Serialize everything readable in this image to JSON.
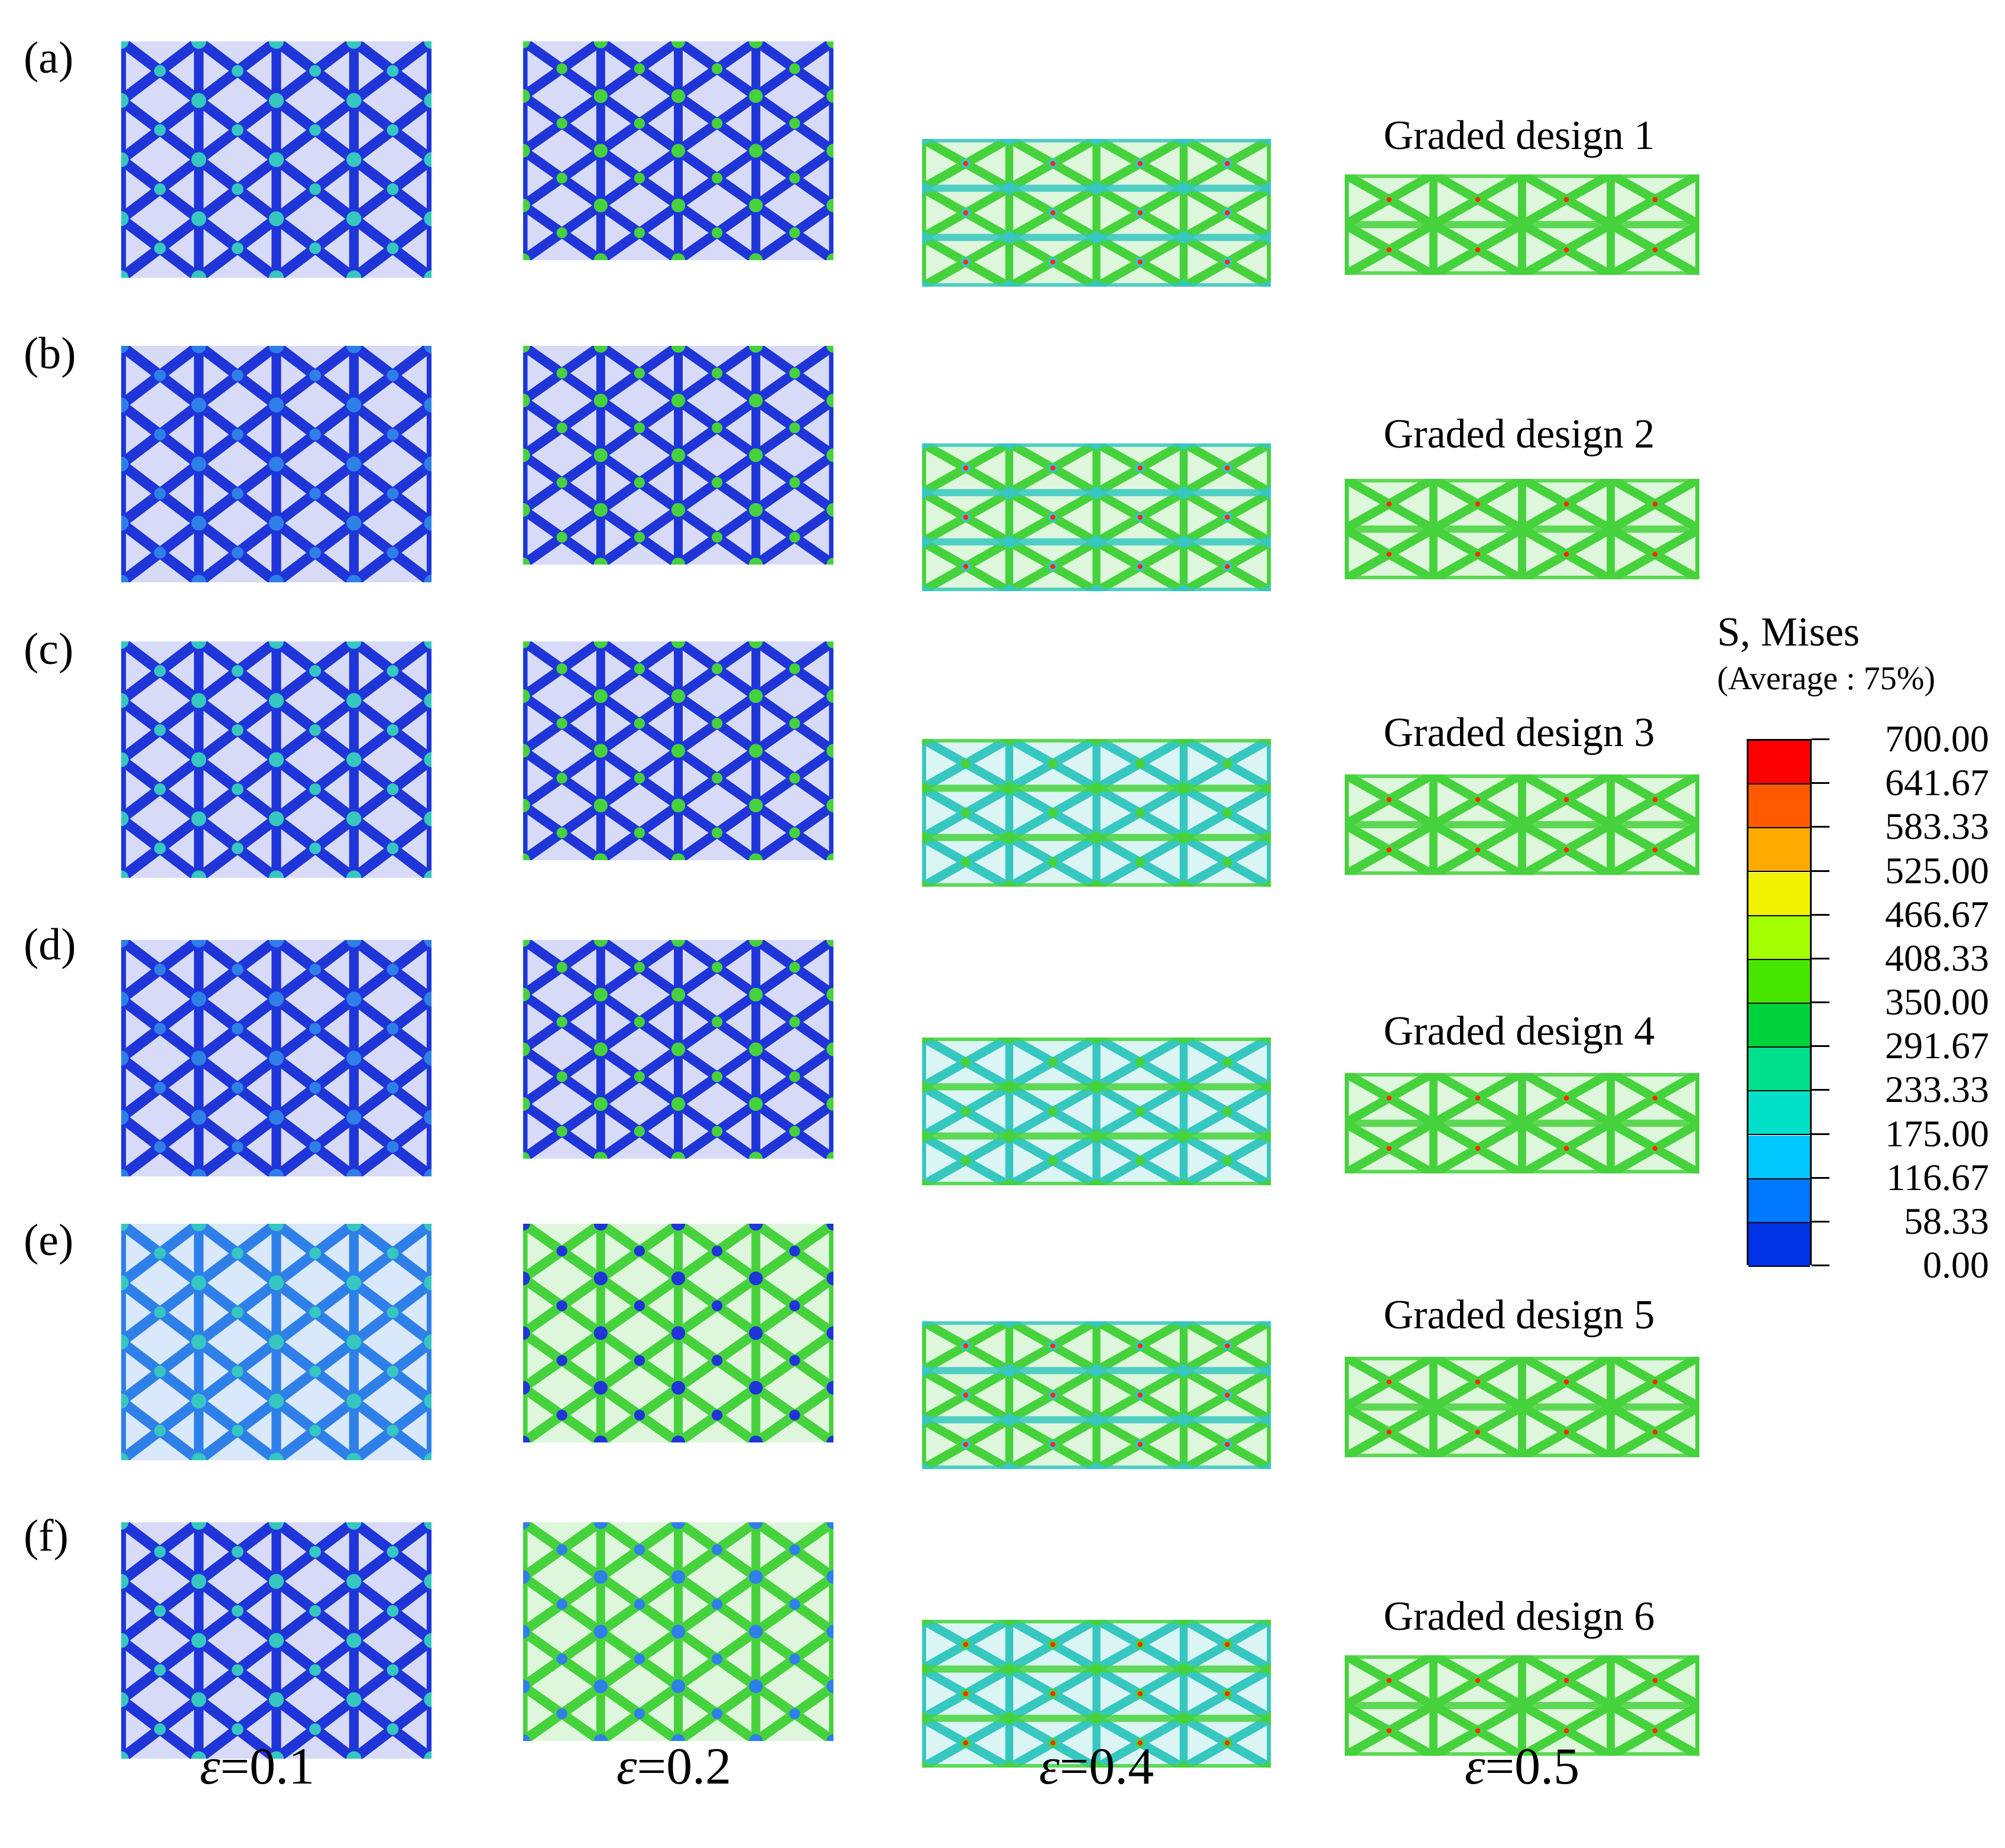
{
  "row_labels": [
    "(a)",
    "(b)",
    "(c)",
    "(d)",
    "(e)",
    "(f)"
  ],
  "design_labels": [
    "Graded design 1",
    "Graded design 2",
    "Graded design 3",
    "Graded design 4",
    "Graded design 5",
    "Graded design 6"
  ],
  "strain_labels": [
    {
      "symbol": "ε",
      "value": "=0.1"
    },
    {
      "symbol": "ε",
      "value": "=0.2"
    },
    {
      "symbol": "ε",
      "value": "=0.4"
    },
    {
      "symbol": "ε",
      "value": "=0.5"
    }
  ],
  "legend": {
    "title": "S, Mises",
    "subtitle": "(Average : 75%)",
    "values": [
      "700.00",
      "641.67",
      "583.33",
      "525.00",
      "466.67",
      "408.33",
      "350.00",
      "291.67",
      "233.33",
      "175.00",
      "116.67",
      "58.33",
      "0.00"
    ],
    "colors": [
      "#ff0000",
      "#ff5a00",
      "#ffaa00",
      "#f2f200",
      "#a6ff00",
      "#46e600",
      "#00d23c",
      "#00e08c",
      "#00e0c8",
      "#00c8ff",
      "#0078ff",
      "#0032e6"
    ]
  },
  "panel_colors": {
    "dark_blue": "#1f35d8",
    "mid_blue": "#2f7fe8",
    "cyan": "#36c7c0",
    "green": "#46d23c",
    "red": "#ff2a00"
  }
}
